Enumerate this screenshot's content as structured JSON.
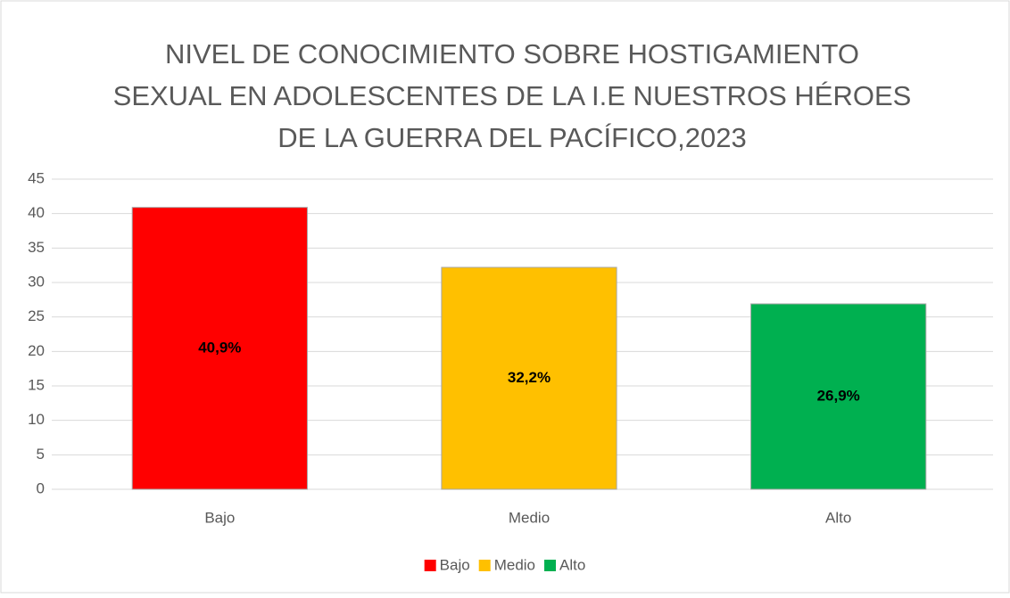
{
  "chart_data": {
    "type": "bar",
    "title": [
      "NIVEL DE CONOCIMIENTO SOBRE HOSTIGAMIENTO",
      "SEXUAL EN ADOLESCENTES DE LA I.E NUESTROS HÉROES",
      "DE LA GUERRA DEL PACÍFICO,2023"
    ],
    "categories": [
      "Bajo",
      "Medio",
      "Alto"
    ],
    "values": [
      40.9,
      32.2,
      26.9
    ],
    "value_labels": [
      "40,9%",
      "32,2%",
      "26,9%"
    ],
    "colors": [
      "#ff0000",
      "#ffc000",
      "#00b050"
    ],
    "ylim": [
      0,
      45
    ],
    "yticks": [
      0,
      5,
      10,
      15,
      20,
      25,
      30,
      35,
      40,
      45
    ],
    "grid": true,
    "legend": "bottom"
  }
}
